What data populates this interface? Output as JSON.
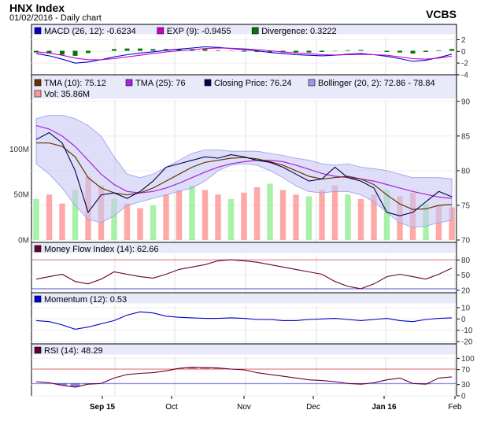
{
  "header": {
    "title": "HNX Index",
    "subtitle": "01/02/2016 - Daily chart",
    "brand": "VCBS"
  },
  "chart_data": {
    "type": "line",
    "x_labels": [
      "Sep 15",
      "Oct",
      "Nov",
      "Dec",
      "Jan 16",
      "Feb"
    ],
    "panels": [
      {
        "id": "macd",
        "legend": [
          {
            "label": "MACD (26, 12): -0.6234",
            "color": "#0000cc"
          },
          {
            "label": "EXP (9): -0.9455",
            "color": "#cc00cc"
          },
          {
            "label": "Divergence: 0.3222",
            "color": "#007700"
          }
        ],
        "y_ticks": [
          "2",
          "0",
          "-2",
          "-4"
        ],
        "ylim": [
          -4,
          2.6
        ],
        "series": [
          {
            "color": "#0000cc",
            "values": [
              -0.5,
              -0.9,
              -1.5,
              -2.2,
              -2.0,
              -1.6,
              -1.1,
              -0.7,
              -0.4,
              -0.2,
              0.1,
              0.3,
              0.5,
              0.7,
              0.6,
              0.4,
              0.2,
              0.0,
              -0.3,
              -0.5,
              -0.7,
              -0.8,
              -0.9,
              -0.8,
              -0.6,
              -0.5,
              -0.7,
              -1.0,
              -1.4,
              -1.9,
              -1.7,
              -1.2,
              -0.6
            ]
          },
          {
            "color": "#cc00cc",
            "values": [
              -0.2,
              -0.4,
              -0.8,
              -1.3,
              -1.6,
              -1.6,
              -1.4,
              -1.1,
              -0.8,
              -0.5,
              -0.2,
              0.0,
              0.2,
              0.4,
              0.5,
              0.45,
              0.35,
              0.2,
              0.0,
              -0.2,
              -0.4,
              -0.5,
              -0.7,
              -0.75,
              -0.7,
              -0.65,
              -0.7,
              -0.8,
              -1.1,
              -1.4,
              -1.5,
              -1.3,
              -0.95
            ]
          }
        ],
        "histogram": {
          "color": "#007700",
          "values": [
            -0.3,
            -0.5,
            -0.7,
            -0.9,
            -0.4,
            0.0,
            0.3,
            0.4,
            0.4,
            0.3,
            0.3,
            0.3,
            0.3,
            0.3,
            0.1,
            -0.05,
            -0.15,
            -0.2,
            -0.3,
            -0.3,
            -0.3,
            -0.3,
            -0.2,
            -0.05,
            0.1,
            0.15,
            0.0,
            -0.2,
            -0.3,
            -0.5,
            -0.2,
            0.1,
            0.32
          ]
        }
      },
      {
        "id": "price",
        "legend": [
          {
            "label": "TMA (10): 75.12",
            "color": "#663300"
          },
          {
            "label": "TMA (25): 76",
            "color": "#aa22dd"
          },
          {
            "label": "Closing Price: 76.24",
            "color": "#000044"
          },
          {
            "label": "Bollinger (20, 2): 72.86 - 78.84",
            "color": "#9999ee"
          },
          {
            "label": "Vol: 35.86M",
            "color": "#ff9999"
          }
        ],
        "y_ticks": [
          "90",
          "85",
          "80",
          "75",
          "70"
        ],
        "ylim": [
          70,
          91
        ],
        "vol_ticks": [
          "100M",
          "50M",
          "0M"
        ],
        "vol_lim": [
          0,
          160
        ],
        "closing": [
          84.5,
          85.5,
          84.0,
          80.0,
          74.0,
          76.5,
          76.8,
          76.0,
          77.0,
          78.5,
          80.5,
          81.0,
          81.5,
          82.0,
          81.8,
          82.3,
          82.0,
          81.5,
          81.2,
          80.5,
          79.5,
          78.5,
          78.8,
          80.5,
          79.0,
          78.5,
          77.5,
          74.0,
          73.5,
          74.0,
          75.5,
          77.0,
          76.24
        ],
        "tma10": [
          84.0,
          84.0,
          83.5,
          82.0,
          79.0,
          77.5,
          76.8,
          76.5,
          76.8,
          77.5,
          78.5,
          79.5,
          80.5,
          81.2,
          81.5,
          81.8,
          81.9,
          81.7,
          81.3,
          80.8,
          80.0,
          79.2,
          78.8,
          79.0,
          79.2,
          78.8,
          78.0,
          76.5,
          75.2,
          74.4,
          74.5,
          75.0,
          75.12
        ],
        "tma25": [
          86.5,
          86.0,
          85.0,
          83.5,
          81.5,
          79.5,
          78.0,
          77.0,
          76.8,
          77.0,
          77.5,
          78.2,
          79.0,
          79.8,
          80.5,
          81.0,
          81.3,
          81.5,
          81.5,
          81.3,
          80.8,
          80.2,
          79.6,
          79.2,
          79.0,
          78.8,
          78.5,
          78.0,
          77.5,
          77.0,
          76.6,
          76.2,
          76.0
        ],
        "bb_upper": [
          87.5,
          88.0,
          88.0,
          87.5,
          86.5,
          85.0,
          82.0,
          79.5,
          79.0,
          79.5,
          80.5,
          81.5,
          82.5,
          83.0,
          83.0,
          82.8,
          82.8,
          82.8,
          82.5,
          82.2,
          81.8,
          81.5,
          81.0,
          80.8,
          81.0,
          80.5,
          80.3,
          80.0,
          79.5,
          79.0,
          79.0,
          79.0,
          78.84
        ],
        "bb_lower": [
          81.0,
          79.5,
          77.5,
          75.0,
          73.0,
          72.5,
          73.5,
          75.0,
          75.5,
          76.0,
          76.5,
          77.0,
          77.5,
          78.5,
          80.0,
          80.8,
          81.0,
          80.8,
          80.0,
          79.0,
          77.8,
          77.0,
          76.8,
          77.0,
          77.0,
          76.5,
          75.5,
          74.0,
          72.5,
          71.8,
          72.0,
          72.5,
          72.86
        ],
        "volume": [
          45,
          50,
          40,
          55,
          70,
          60,
          45,
          40,
          35,
          38,
          50,
          55,
          60,
          55,
          50,
          45,
          52,
          58,
          62,
          55,
          50,
          48,
          55,
          60,
          50,
          45,
          50,
          55,
          48,
          52,
          40,
          38,
          35.86
        ]
      },
      {
        "id": "mfi",
        "legend": [
          {
            "label": "Money Flow Index (14): 62.66",
            "color": "#660033"
          }
        ],
        "y_ticks": [
          "80",
          "50",
          "20"
        ],
        "ylim": [
          15,
          90
        ],
        "ref_lines": [
          80,
          20
        ],
        "series": [
          {
            "color": "#660033",
            "values": [
              40,
              45,
              50,
              35,
              30,
              40,
              55,
              50,
              45,
              42,
              50,
              60,
              65,
              70,
              78,
              80,
              78,
              75,
              70,
              65,
              60,
              55,
              50,
              35,
              25,
              20,
              30,
              45,
              50,
              45,
              40,
              50,
              62.66
            ]
          }
        ]
      },
      {
        "id": "momentum",
        "legend": [
          {
            "label": "Momentum (12): 0.53",
            "color": "#0000cc"
          }
        ],
        "y_ticks": [
          "10",
          "0",
          "-10",
          "-20"
        ],
        "ylim": [
          -22,
          12
        ],
        "series": [
          {
            "color": "#0000cc",
            "values": [
              -2,
              -3,
              -6,
              -10,
              -8,
              -5,
              -2,
              3,
              6,
              5,
              2,
              1,
              0.5,
              0,
              0,
              0.5,
              0,
              -1,
              -1,
              -2,
              -2,
              -1,
              -0.5,
              0,
              -1,
              -2,
              -1,
              0,
              -2,
              -3,
              -1,
              0,
              0.53
            ]
          }
        ]
      },
      {
        "id": "rsi",
        "legend": [
          {
            "label": "RSI (14): 48.29",
            "color": "#660033"
          }
        ],
        "y_ticks": [
          "100",
          "70",
          "30",
          "0"
        ],
        "ylim": [
          0,
          105
        ],
        "ref_lines": [
          70,
          30
        ],
        "series": [
          {
            "color": "#660033",
            "values": [
              35,
              32,
              25,
              20,
              28,
              30,
              45,
              55,
              58,
              60,
              65,
              72,
              75,
              74,
              73,
              70,
              68,
              60,
              55,
              50,
              45,
              40,
              38,
              35,
              30,
              28,
              32,
              40,
              45,
              30,
              28,
              45,
              48.29
            ]
          }
        ]
      }
    ]
  }
}
